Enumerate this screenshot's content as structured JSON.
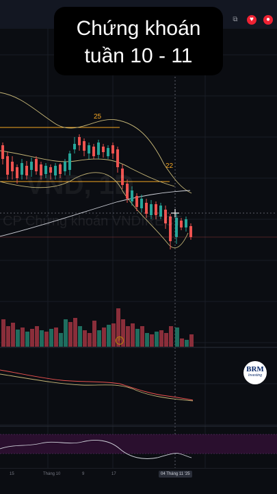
{
  "overlay": {
    "title_line1": "Chứng khoán",
    "title_line2": "tuần 10 - 11"
  },
  "chart": {
    "ticker_watermark": "VND, 1D",
    "name_watermark": "CP Chứng khoán VNDIRECT",
    "level_labels": [
      "25",
      "22"
    ],
    "volume_marker": "F"
  },
  "logo": {
    "text": "BRM",
    "subtitle": "Investing"
  },
  "x_axis": {
    "ticks": [
      "15",
      "Tháng 10",
      "9",
      "17"
    ],
    "crosshair_date": "04 Tháng 11 '25"
  },
  "colors": {
    "up": "#26a69a",
    "down": "#ef5350",
    "level": "#f5a623",
    "bands": "#c8b878",
    "rsi_band": "#2a0f2e"
  }
}
